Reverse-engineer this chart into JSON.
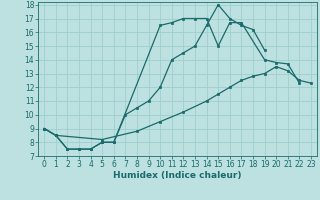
{
  "xlabel": "Humidex (Indice chaleur)",
  "xlim": [
    -0.5,
    23.5
  ],
  "ylim": [
    7,
    18.2
  ],
  "yticks": [
    7,
    8,
    9,
    10,
    11,
    12,
    13,
    14,
    15,
    16,
    17,
    18
  ],
  "xticks": [
    0,
    1,
    2,
    3,
    4,
    5,
    6,
    7,
    8,
    9,
    10,
    11,
    12,
    13,
    14,
    15,
    16,
    17,
    18,
    19,
    20,
    21,
    22,
    23
  ],
  "bg_color": "#bde0e0",
  "line_color": "#1a6b6b",
  "grid_color": "#9ecece",
  "line1_x": [
    0,
    1,
    2,
    3,
    4,
    5,
    6,
    7,
    8,
    9,
    10,
    11,
    12,
    13,
    14,
    15,
    16,
    17,
    18,
    19
  ],
  "line1_y": [
    9.0,
    8.5,
    7.5,
    7.5,
    7.5,
    8.0,
    8.0,
    10.0,
    10.5,
    11.0,
    12.0,
    14.0,
    14.5,
    15.0,
    16.5,
    18.0,
    17.0,
    16.5,
    16.2,
    14.7
  ],
  "line2_x": [
    0,
    1,
    2,
    3,
    4,
    5,
    6,
    10,
    11,
    12,
    13,
    14,
    15,
    16,
    17,
    19,
    20,
    21,
    22
  ],
  "line2_y": [
    9.0,
    8.5,
    7.5,
    7.5,
    7.5,
    8.0,
    8.0,
    16.5,
    16.7,
    17.0,
    17.0,
    17.0,
    15.0,
    16.7,
    16.7,
    14.0,
    13.8,
    13.7,
    12.3
  ],
  "line3_x": [
    0,
    1,
    5,
    8,
    10,
    12,
    14,
    15,
    16,
    17,
    18,
    19,
    20,
    21,
    22,
    23
  ],
  "line3_y": [
    9.0,
    8.5,
    8.2,
    8.8,
    9.5,
    10.2,
    11.0,
    11.5,
    12.0,
    12.5,
    12.8,
    13.0,
    13.5,
    13.2,
    12.5,
    12.3
  ],
  "tick_fontsize": 5.5,
  "xlabel_fontsize": 6.5
}
